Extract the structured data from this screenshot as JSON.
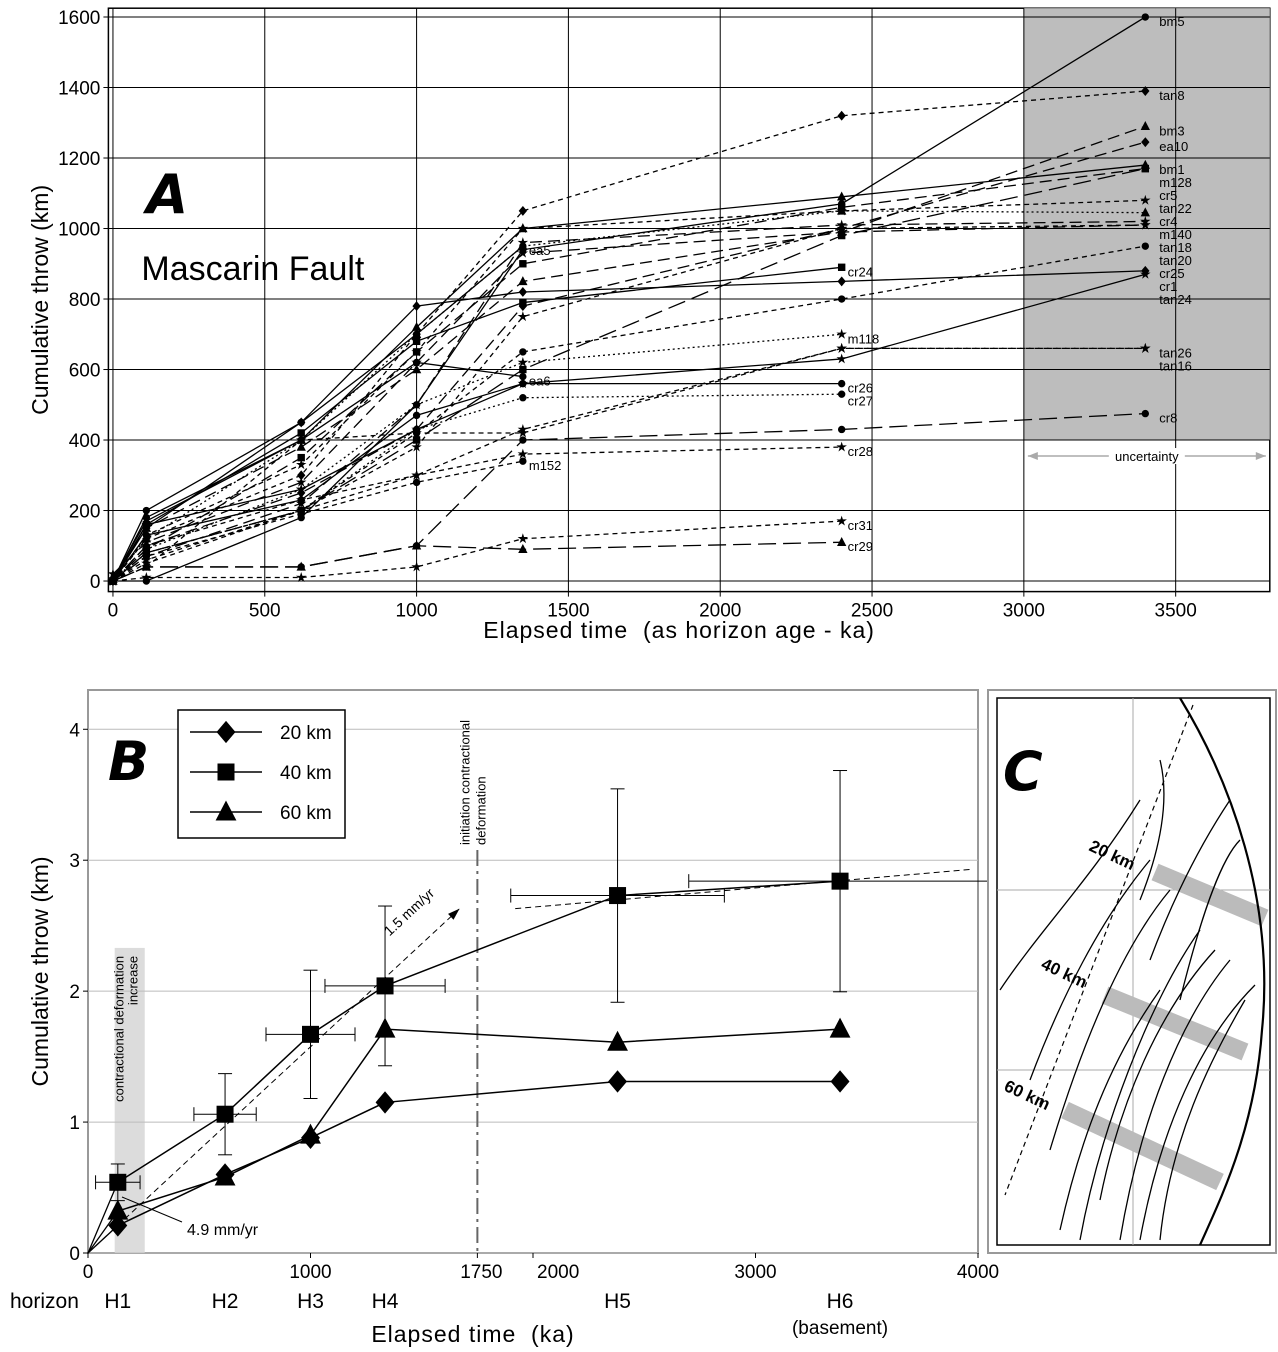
{
  "chart_data": [
    {
      "type": "line",
      "panel": "A",
      "title": "Mascarin Fault",
      "x_label": "Elapsed time  (as horizon age - ka)",
      "y_label": "Cumulative throw (km)",
      "xlim": [
        -15,
        3810
      ],
      "ylim": [
        -30,
        1625
      ],
      "xticks": [
        0,
        500,
        1000,
        1500,
        2000,
        2500,
        3000,
        3500
      ],
      "yticks": [
        0,
        200,
        400,
        600,
        800,
        1000,
        1200,
        1400,
        1600
      ],
      "grid": true,
      "shade": {
        "x": [
          3000,
          3810
        ],
        "y": [
          400,
          1625
        ],
        "color": "#bdbdbd",
        "label": "uncertainty"
      },
      "x": [
        0,
        110,
        620,
        1000,
        1350,
        2400,
        3400
      ],
      "series": [
        {
          "name": "bm5",
          "color": "#000",
          "style": "solid",
          "marker": "circle",
          "values": [
            0,
            0,
            180,
            500,
            940,
            1070,
            1600
          ]
        },
        {
          "name": "tan8",
          "color": "#000",
          "style": "shortdash",
          "marker": "diamond",
          "values": [
            0,
            120,
            300,
            700,
            1050,
            1320,
            1390
          ]
        },
        {
          "name": "bm3",
          "color": "#000",
          "style": "dashed",
          "marker": "triangle",
          "values": [
            10,
            150,
            380,
            600,
            850,
            990,
            1290
          ]
        },
        {
          "name": "ea10",
          "color": "#000",
          "style": "dashed",
          "marker": "diamond",
          "values": [
            0,
            100,
            250,
            430,
            780,
            1000,
            1245
          ]
        },
        {
          "name": "bm1",
          "color": "#000",
          "style": "solid",
          "marker": "triangle",
          "values": [
            5,
            170,
            400,
            720,
            1000,
            1090,
            1180
          ]
        },
        {
          "name": "m128",
          "color": "#000",
          "style": "dashed",
          "marker": "square",
          "values": [
            0,
            90,
            350,
            650,
            900,
            1060,
            1170
          ]
        },
        {
          "name": "cr5",
          "color": "#000",
          "style": "longdash",
          "marker": "square",
          "values": [
            0,
            80,
            200,
            400,
            600,
            980,
            1170
          ]
        },
        {
          "name": "tan22",
          "color": "#000",
          "style": "shortdash",
          "marker": "star",
          "values": [
            0,
            130,
            330,
            650,
            1000,
            1050,
            1080
          ]
        },
        {
          "name": "cr4",
          "color": "#000",
          "style": "dotted",
          "marker": "triangle",
          "values": [
            10,
            120,
            400,
            700,
            950,
            1050,
            1045
          ]
        },
        {
          "name": "m140",
          "color": "#000",
          "style": "dashed",
          "marker": "star",
          "values": [
            0,
            70,
            220,
            500,
            960,
            1010,
            1020
          ]
        },
        {
          "name": "tan18",
          "color": "#000",
          "style": "shortdash",
          "marker": "star",
          "values": [
            0,
            60,
            200,
            380,
            750,
            1000,
            1010
          ]
        },
        {
          "name": "tan20",
          "color": "#000",
          "style": "dashed",
          "marker": "star",
          "values": [
            20,
            110,
            280,
            620,
            930,
            990,
            1010
          ]
        },
        {
          "name": "cr25",
          "color": "#000",
          "style": "shortdash",
          "marker": "circle",
          "values": [
            0,
            80,
            200,
            420,
            650,
            800,
            950
          ]
        },
        {
          "name": "cr1",
          "color": "#000",
          "style": "solid",
          "marker": "diamond",
          "values": [
            0,
            150,
            450,
            780,
            820,
            850,
            880
          ]
        },
        {
          "name": "tan24",
          "color": "#000",
          "style": "solid",
          "marker": "star",
          "values": [
            0,
            160,
            260,
            430,
            560,
            630,
            870
          ]
        },
        {
          "name": "tan26",
          "color": "#000",
          "style": "shortdash",
          "marker": "star",
          "values": [
            0,
            50,
            200,
            300,
            430,
            660,
            660
          ]
        },
        {
          "name": "tan16",
          "color": "#000",
          "style": "shortdash",
          "marker": "star",
          "values": [
            0,
            40,
            400,
            420,
            420,
            660,
            660
          ]
        },
        {
          "name": "cr8",
          "color": "#000",
          "style": "longdash",
          "marker": "circle",
          "values": [
            0,
            40,
            40,
            100,
            400,
            430,
            475
          ]
        },
        {
          "name": "ea5",
          "color": "#000",
          "style": "solid",
          "marker": "circle",
          "values": [
            0,
            200,
            450,
            700,
            950,
            null,
            null
          ]
        },
        {
          "name": "cr24",
          "color": "#000",
          "style": "solid",
          "marker": "square",
          "values": [
            0,
            160,
            420,
            680,
            790,
            890,
            null
          ]
        },
        {
          "name": "m118",
          "color": "#000",
          "style": "dotted",
          "marker": "star",
          "values": [
            0,
            90,
            260,
            500,
            620,
            700,
            null
          ]
        },
        {
          "name": "ea6",
          "color": "#000",
          "style": "solid",
          "marker": "circle",
          "values": [
            0,
            180,
            400,
            620,
            580,
            null,
            null
          ]
        },
        {
          "name": "cr26",
          "color": "#000",
          "style": "solid",
          "marker": "circle",
          "values": [
            0,
            130,
            230,
            470,
            560,
            560,
            null
          ]
        },
        {
          "name": "cr27",
          "color": "#000",
          "style": "dotted",
          "marker": "circle",
          "values": [
            0,
            80,
            200,
            430,
            520,
            530,
            null
          ]
        },
        {
          "name": "cr28",
          "color": "#000",
          "style": "shortdash",
          "marker": "star",
          "values": [
            0,
            100,
            230,
            300,
            360,
            380,
            null
          ]
        },
        {
          "name": "m152",
          "color": "#000",
          "style": "shortdash",
          "marker": "circle",
          "values": [
            0,
            70,
            190,
            280,
            340,
            null,
            null
          ]
        },
        {
          "name": "cr31",
          "color": "#000",
          "style": "shortdash",
          "marker": "star",
          "values": [
            0,
            10,
            10,
            40,
            120,
            170,
            null
          ]
        },
        {
          "name": "cr29",
          "color": "#000",
          "style": "longdash",
          "marker": "triangle",
          "values": [
            0,
            40,
            40,
            100,
            90,
            110,
            null
          ]
        }
      ]
    },
    {
      "type": "line",
      "panel": "B",
      "x_label": "Elapsed time  (ka)",
      "y_label": "Cumulative throw (km)",
      "xlim": [
        0,
        4000
      ],
      "ylim": [
        0,
        4.3
      ],
      "xticks": [
        0,
        1000,
        1750,
        2000,
        3000,
        4000
      ],
      "yticks": [
        0,
        1,
        2,
        3,
        4
      ],
      "grid": true,
      "legend": "upper-left",
      "horizons": {
        "title": "horizon",
        "labels": [
          "H1",
          "H2",
          "H3",
          "H4",
          "H5",
          "H6"
        ],
        "note": "(basement)"
      },
      "band": {
        "x": [
          120,
          255
        ],
        "y": [
          0,
          2.33
        ],
        "color": "#dcdcdc",
        "label": [
          "contractional deformation",
          "increase"
        ]
      },
      "vline": {
        "x": 1750,
        "label": [
          "initiation contractional",
          "deformation"
        ]
      },
      "trend": [
        {
          "x": [
            0,
            1670
          ],
          "y": [
            0,
            2.63
          ],
          "label": "1.5 mm/yr"
        },
        {
          "x": [
            1920,
            3970
          ],
          "y": [
            2.63,
            2.93
          ]
        }
      ],
      "annotation": "4.9 mm/yr",
      "x": [
        134,
        616,
        1000,
        1335,
        2380,
        3380
      ],
      "series": [
        {
          "name": "20 km",
          "color": "#000",
          "marker": "diamond",
          "values": [
            0.21,
            0.6,
            0.88,
            1.15,
            1.31,
            1.31
          ]
        },
        {
          "name": "40 km",
          "color": "#000",
          "marker": "square",
          "values": [
            0.54,
            1.06,
            1.67,
            2.04,
            2.73,
            2.84
          ],
          "yerr": [
            0.14,
            0.31,
            0.49,
            0.61,
            0.815,
            0.845
          ],
          "xerr": [
            100,
            140,
            200,
            270,
            480,
            680
          ]
        },
        {
          "name": "60 km",
          "color": "#000",
          "marker": "triangle",
          "values": [
            0.32,
            0.58,
            0.9,
            1.71,
            1.61,
            1.71
          ]
        }
      ]
    }
  ],
  "inset": {
    "panel": "C",
    "scales": [
      "20 km",
      "40 km",
      "60 km"
    ]
  }
}
